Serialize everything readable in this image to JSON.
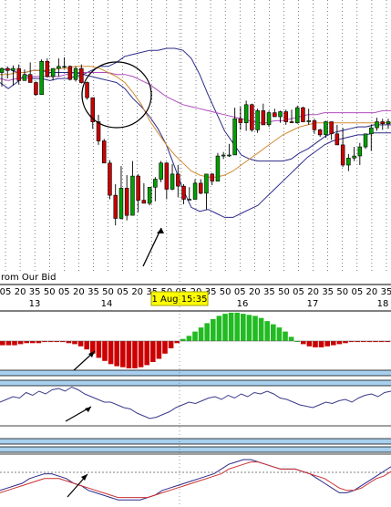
{
  "watermark_text": "rom Our Bid",
  "cursor_label": "1 Aug 15:35",
  "colors": {
    "up": "#00a000",
    "down": "#cc0000",
    "band": "#2a2a8a",
    "ma": "#b04cc0",
    "ema": "#d08a30",
    "hist_pos": "#22bb22",
    "hist_neg": "#cc0000",
    "separator": "#a8d0ee",
    "osc_line": "#3a3a8a",
    "stoch_k": "#2a2a8a",
    "stoch_d": "#cc3030",
    "cursor_bg": "#ffff00"
  },
  "chart_data": [
    {
      "type": "candlestick",
      "title": "",
      "show_price_axis": false,
      "x_tick_labels": [
        "05",
        "20",
        "35",
        "50",
        "05",
        "20",
        "35",
        "50",
        "05",
        "20",
        "35",
        "50",
        "05",
        "20",
        "35",
        "50",
        "05",
        "20",
        "35",
        "50",
        "05",
        "20",
        "35",
        "50",
        "05",
        "20",
        "35"
      ],
      "day_labels": [
        "13",
        "14",
        "16",
        "17",
        "18"
      ],
      "candles": [
        [
          24.0,
          26.5,
          17.0,
          26.0
        ],
        [
          26.0,
          27.0,
          21.0,
          25.0
        ],
        [
          25.0,
          27.5,
          17.5,
          26.0
        ],
        [
          26.0,
          28.0,
          18.0,
          20.0
        ],
        [
          20.0,
          25.5,
          20.0,
          23.0
        ],
        [
          23.0,
          29.0,
          19.0,
          19.0
        ],
        [
          19.0,
          19.5,
          12.5,
          13.0
        ],
        [
          13.0,
          30.5,
          13.0,
          29.5
        ],
        [
          29.5,
          31.0,
          21.5,
          22.0
        ],
        [
          22.0,
          26.0,
          20.0,
          26.0
        ],
        [
          26.0,
          31.0,
          22.0,
          27.0
        ],
        [
          27.0,
          31.5,
          26.0,
          27.0
        ],
        [
          27.0,
          27.5,
          20.0,
          20.5
        ],
        [
          20.5,
          27.0,
          19.5,
          26.0
        ],
        [
          26.0,
          28.0,
          18.5,
          19.0
        ],
        [
          19.0,
          19.5,
          10.5,
          11.5
        ],
        [
          11.5,
          11.5,
          -4.0,
          -0.5
        ],
        [
          -0.5,
          3.0,
          -12.0,
          -10.0
        ],
        [
          -10.0,
          -9.0,
          -21.0,
          -21.0
        ],
        [
          -21.0,
          -19.5,
          -39.0,
          -37.0
        ],
        [
          -37.0,
          -31.5,
          -52.0,
          -48.5
        ],
        [
          -48.5,
          -22.5,
          -49.0,
          -33.5
        ],
        [
          -33.5,
          -27.0,
          -49.5,
          -47.0
        ],
        [
          -47.0,
          -20.0,
          -47.0,
          -27.5
        ],
        [
          -27.5,
          -26.5,
          -45.5,
          -39.5
        ],
        [
          -39.5,
          -31.0,
          -41.0,
          -41.0
        ],
        [
          -41.0,
          -33.0,
          -42.0,
          -33.0
        ],
        [
          -33.0,
          -28.0,
          -40.0,
          -29.0
        ],
        [
          -29.0,
          -20.0,
          -30.5,
          -21.0
        ],
        [
          -21.0,
          -20.5,
          -39.0,
          -34.0
        ],
        [
          -34.0,
          -21.5,
          -34.5,
          -26.5
        ],
        [
          -26.5,
          -22.0,
          -38.0,
          -32.5
        ],
        [
          -32.5,
          -31.5,
          -41.5,
          -39.0
        ],
        [
          -39.0,
          -33.0,
          -39.5,
          -39.0
        ],
        [
          -39.0,
          -29.0,
          -39.0,
          -31.0
        ],
        [
          -31.0,
          -29.0,
          -36.5,
          -36.0
        ],
        [
          -36.0,
          -26.5,
          -44.0,
          -26.5
        ],
        [
          -26.5,
          -26.0,
          -32.0,
          -30.0
        ],
        [
          -30.0,
          -16.0,
          -30.0,
          -17.5
        ],
        [
          -17.5,
          -15.5,
          -19.0,
          -17.0
        ],
        [
          -17.0,
          -11.5,
          -18.0,
          -17.0
        ],
        [
          -17.0,
          6.5,
          -17.0,
          1.0
        ],
        [
          1.0,
          7.0,
          -4.5,
          -1.0
        ],
        [
          -1.0,
          10.0,
          -5.0,
          8.0
        ],
        [
          8.0,
          8.5,
          -5.5,
          -4.5
        ],
        [
          -4.5,
          6.0,
          -6.0,
          5.0
        ],
        [
          5.0,
          8.5,
          -2.0,
          -2.0
        ],
        [
          -2.0,
          5.0,
          -3.0,
          4.0
        ],
        [
          4.0,
          6.0,
          2.0,
          2.0
        ],
        [
          2.0,
          5.0,
          -1.0,
          4.5
        ],
        [
          4.5,
          5.5,
          -2.0,
          -0.5
        ],
        [
          -0.5,
          5.5,
          -1.0,
          -1.0
        ],
        [
          -1.0,
          7.5,
          -1.5,
          6.5
        ],
        [
          6.5,
          7.0,
          -0.5,
          -0.5
        ],
        [
          -0.5,
          6.0,
          -2.0,
          0.0
        ],
        [
          0.0,
          1.0,
          -6.5,
          -4.5
        ],
        [
          -4.5,
          -4.0,
          -8.0,
          -7.0
        ],
        [
          -7.0,
          0.0,
          -8.5,
          -0.5
        ],
        [
          -0.5,
          -0.5,
          -9.5,
          -6.5
        ],
        [
          -6.5,
          -2.0,
          -12.0,
          -12.0
        ],
        [
          -12.0,
          -3.5,
          -23.0,
          -22.0
        ],
        [
          -22.0,
          -16.5,
          -25.0,
          -18.5
        ],
        [
          -18.5,
          -13.0,
          -20.0,
          -17.5
        ],
        [
          -17.5,
          -11.0,
          -22.0,
          -13.0
        ],
        [
          -13.0,
          -6.5,
          -14.0,
          -6.5
        ],
        [
          -6.5,
          -2.0,
          -15.0,
          -3.5
        ],
        [
          -3.5,
          1.5,
          -5.0,
          -0.5
        ],
        [
          -0.5,
          1.0,
          -4.5,
          -1.5
        ],
        [
          -1.5,
          1.0,
          -4.0,
          -0.5
        ]
      ],
      "upper_band": [
        19,
        16,
        19,
        23,
        21,
        21,
        20,
        21,
        21,
        22,
        23,
        25,
        27,
        27,
        29,
        32,
        33,
        34,
        35,
        35,
        36,
        36,
        35,
        31,
        23,
        13,
        4,
        -5,
        -11,
        -17,
        -19,
        -20,
        -20,
        -20,
        -20,
        -19,
        -16,
        -14,
        -11,
        -8,
        -6,
        -5,
        -4,
        -3,
        -3,
        -2,
        -2,
        -2
      ],
      "middle_band": [
        21,
        20,
        21,
        21,
        22,
        22,
        22,
        22,
        23,
        24,
        24,
        24,
        24,
        24,
        23,
        23,
        22,
        20,
        18,
        15,
        12,
        10,
        8,
        7,
        6,
        5,
        4,
        3,
        2,
        1,
        0,
        -1,
        -1,
        0,
        0,
        1,
        2,
        3,
        3,
        4,
        4,
        4,
        4,
        4,
        4,
        4,
        5,
        5
      ],
      "lower_band": [
        25,
        26,
        24,
        24,
        25,
        25,
        24,
        24,
        24,
        24,
        23,
        22,
        21,
        20,
        19,
        16,
        11,
        7,
        2,
        -4,
        -12,
        -23,
        -34,
        -43,
        -45,
        -44,
        -46,
        -48,
        -48,
        -46,
        -44,
        -42,
        -38,
        -34,
        -30,
        -26,
        -22,
        -18,
        -15,
        -12,
        -10,
        -9,
        -8,
        -7,
        -7,
        -6,
        -6,
        -6
      ],
      "ema": [
        23,
        23,
        24,
        24,
        25,
        25,
        25,
        26,
        26,
        27,
        27,
        27,
        26,
        24,
        22,
        19,
        14,
        8,
        0,
        -6,
        -12,
        -17,
        -21,
        -25,
        -27,
        -28,
        -28,
        -27,
        -25,
        -22,
        -19,
        -16,
        -13,
        -10,
        -7,
        -5,
        -3,
        -2,
        -1,
        -1,
        -1,
        -1,
        -1,
        -1,
        -1,
        -1,
        -1,
        -1
      ],
      "annotations": [
        "circle-around-top",
        "arrow-to-low"
      ]
    },
    {
      "type": "bar",
      "name": "histogram",
      "values": [
        -4,
        -4,
        -4,
        -3,
        -2,
        -2,
        -2,
        -1,
        -1,
        -1,
        -1,
        -2,
        -3,
        -5,
        -8,
        -12,
        -16,
        -19,
        -22,
        -24,
        -25,
        -26,
        -26,
        -25,
        -23,
        -20,
        -17,
        -12,
        -7,
        -2,
        2,
        5,
        9,
        13,
        17,
        21,
        24,
        26,
        27,
        27,
        26,
        25,
        24,
        22,
        19,
        16,
        13,
        9,
        4,
        0,
        -3,
        -5,
        -6,
        -6,
        -5,
        -4,
        -3,
        -2,
        -1,
        -1,
        -1,
        -1,
        -1,
        -1,
        -1
      ]
    },
    {
      "type": "line",
      "name": "oscillator",
      "values": [
        6,
        8,
        10,
        9,
        13,
        11,
        14,
        12,
        15,
        16,
        14,
        17,
        15,
        12,
        10,
        8,
        6,
        6,
        4,
        2,
        1,
        -2,
        -4,
        -6,
        -5,
        -3,
        -1,
        2,
        4,
        6,
        5,
        7,
        9,
        10,
        8,
        11,
        9,
        12,
        10,
        13,
        12,
        14,
        12,
        9,
        8,
        6,
        4,
        3,
        2,
        4,
        6,
        5,
        7,
        8,
        6,
        9,
        11,
        12,
        10,
        13,
        14
      ]
    },
    {
      "type": "line",
      "name": "stochastic",
      "series": [
        {
          "values": [
            7,
            8,
            9,
            10,
            12,
            13,
            14,
            14,
            13,
            12,
            10,
            9,
            7,
            6,
            5,
            4,
            3,
            3,
            3,
            3,
            4,
            5,
            7,
            8,
            9,
            10,
            11,
            12,
            13,
            14,
            16,
            18,
            19,
            20,
            20,
            19,
            18,
            17,
            16,
            16,
            16,
            15,
            14,
            12,
            10,
            8,
            6,
            6,
            7,
            9,
            11,
            13,
            15,
            17
          ]
        },
        {
          "values": [
            6,
            7,
            8,
            9,
            10,
            11,
            12,
            12,
            12,
            11,
            10,
            9,
            8,
            7,
            6,
            5,
            4,
            4,
            4,
            4,
            4,
            5,
            6,
            7,
            8,
            9,
            10,
            11,
            12,
            13,
            14,
            16,
            17,
            18,
            19,
            19,
            18,
            17,
            16,
            16,
            16,
            15,
            14,
            13,
            12,
            10,
            8,
            7,
            7,
            8,
            10,
            12,
            13,
            15
          ]
        }
      ]
    }
  ]
}
